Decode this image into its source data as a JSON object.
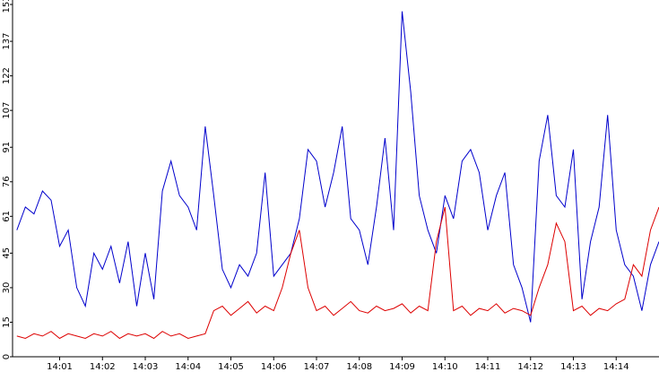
{
  "chart_data": {
    "type": "line",
    "x": [
      0,
      0.2,
      0.4,
      0.6,
      0.8,
      1,
      1.2,
      1.4,
      1.6,
      1.8,
      2,
      2.2,
      2.4,
      2.6,
      2.8,
      3,
      3.2,
      3.4,
      3.6,
      3.8,
      4,
      4.2,
      4.4,
      4.6,
      4.8,
      5,
      5.2,
      5.4,
      5.6,
      5.8,
      6,
      6.2,
      6.4,
      6.6,
      6.8,
      7,
      7.2,
      7.4,
      7.6,
      7.8,
      8,
      8.2,
      8.4,
      8.6,
      8.8,
      9,
      9.2,
      9.4,
      9.6,
      9.8,
      10,
      10.2,
      10.4,
      10.6,
      10.8,
      11,
      11.2,
      11.4,
      11.6,
      11.8,
      12,
      12.2,
      12.4,
      12.6,
      12.8,
      13,
      13.2,
      13.4,
      13.6,
      13.8,
      14,
      14.2,
      14.4,
      14.6,
      14.8,
      15
    ],
    "series": [
      {
        "color": "#0000cc",
        "values": [
          55,
          65,
          62,
          72,
          68,
          48,
          55,
          30,
          22,
          45,
          38,
          48,
          32,
          50,
          22,
          45,
          25,
          72,
          85,
          70,
          65,
          55,
          100,
          70,
          38,
          30,
          40,
          35,
          45,
          80,
          35,
          40,
          45,
          60,
          90,
          85,
          65,
          80,
          100,
          60,
          55,
          40,
          65,
          95,
          55,
          150,
          115,
          70,
          55,
          45,
          70,
          60,
          85,
          90,
          80,
          55,
          70,
          80,
          40,
          30,
          15,
          85,
          105,
          70,
          65,
          90,
          25,
          50,
          65,
          105,
          55,
          40,
          35,
          20,
          40,
          50
        ]
      },
      {
        "color": "#dd0000",
        "values": [
          9,
          8,
          10,
          9,
          11,
          8,
          10,
          9,
          8,
          10,
          9,
          11,
          8,
          10,
          9,
          10,
          8,
          11,
          9,
          10,
          8,
          9,
          10,
          20,
          22,
          18,
          21,
          24,
          19,
          22,
          20,
          30,
          45,
          55,
          30,
          20,
          22,
          18,
          21,
          24,
          20,
          19,
          22,
          20,
          21,
          23,
          19,
          22,
          20,
          50,
          65,
          20,
          22,
          18,
          21,
          20,
          23,
          19,
          21,
          20,
          18,
          30,
          40,
          58,
          50,
          20,
          22,
          18,
          21,
          20,
          23,
          25,
          40,
          35,
          55,
          65
        ]
      }
    ],
    "xlim": [
      -0.1,
      15.0
    ],
    "xticks": [
      {
        "value": 1,
        "label": "14:01"
      },
      {
        "value": 2,
        "label": "14:02"
      },
      {
        "value": 3,
        "label": "14:03"
      },
      {
        "value": 4,
        "label": "14:04"
      },
      {
        "value": 5,
        "label": "14:05"
      },
      {
        "value": 6,
        "label": "14:06"
      },
      {
        "value": 7,
        "label": "14:07"
      },
      {
        "value": 8,
        "label": "14:08"
      },
      {
        "value": 9,
        "label": "14:09"
      },
      {
        "value": 10,
        "label": "14:10"
      },
      {
        "value": 11,
        "label": "14:11"
      },
      {
        "value": 12,
        "label": "14:12"
      },
      {
        "value": 13,
        "label": "14:13"
      },
      {
        "value": 14,
        "label": "14:14"
      }
    ],
    "ylim": [
      0,
      153
    ],
    "yticks": [
      0,
      15,
      30,
      45,
      61,
      76,
      91,
      107,
      122,
      137,
      153
    ]
  }
}
